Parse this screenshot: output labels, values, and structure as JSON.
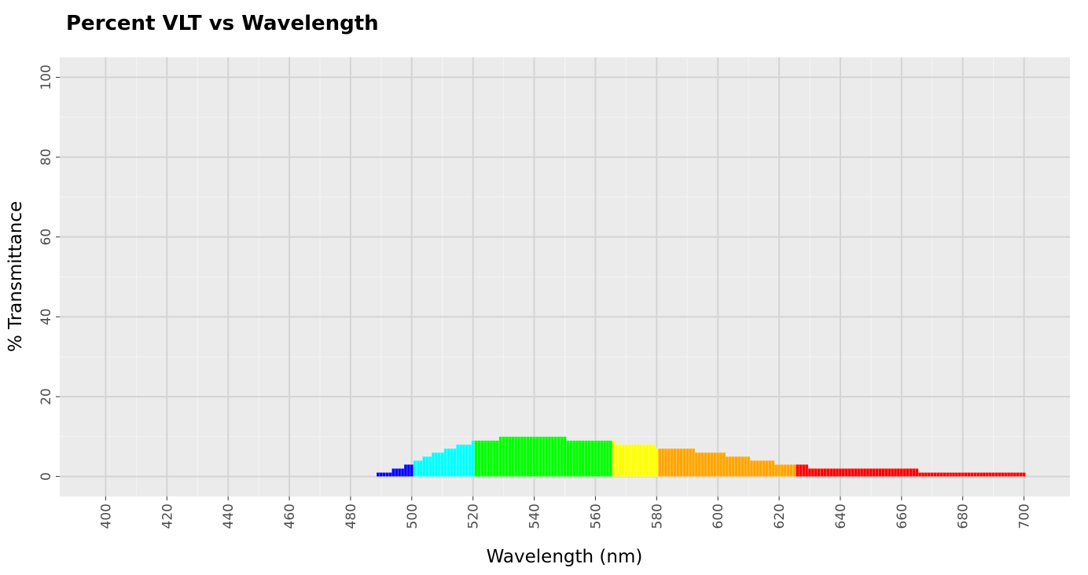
{
  "chart_data": {
    "type": "bar",
    "title": "Percent VLT vs Wavelength",
    "xlabel": "Wavelength (nm)",
    "ylabel": "% Transmittance",
    "xlim": [
      385,
      715
    ],
    "ylim": [
      -5,
      105
    ],
    "x_ticks": [
      400,
      420,
      440,
      460,
      480,
      500,
      520,
      540,
      560,
      580,
      600,
      620,
      640,
      660,
      680,
      700
    ],
    "y_ticks": [
      0,
      20,
      40,
      60,
      80,
      100
    ],
    "grid": true,
    "bar_width_nm": 1,
    "colors": {
      "blue": "#0000FF",
      "cyan": "#00FFFF",
      "green": "#00FF00",
      "yellow": "#FFFF00",
      "orange": "#FFA500",
      "red": "#FF0000"
    },
    "segments": [
      {
        "from": 489,
        "to": 493,
        "value": 1,
        "color": "blue"
      },
      {
        "from": 494,
        "to": 497,
        "value": 2,
        "color": "blue"
      },
      {
        "from": 498,
        "to": 500,
        "value": 3,
        "color": "blue"
      },
      {
        "from": 501,
        "to": 503,
        "value": 4,
        "color": "cyan"
      },
      {
        "from": 504,
        "to": 506,
        "value": 5,
        "color": "cyan"
      },
      {
        "from": 507,
        "to": 510,
        "value": 6,
        "color": "cyan"
      },
      {
        "from": 511,
        "to": 514,
        "value": 7,
        "color": "cyan"
      },
      {
        "from": 515,
        "to": 519,
        "value": 8,
        "color": "cyan"
      },
      {
        "from": 520,
        "to": 520,
        "value": 9,
        "color": "cyan"
      },
      {
        "from": 521,
        "to": 528,
        "value": 9,
        "color": "green"
      },
      {
        "from": 529,
        "to": 550,
        "value": 10,
        "color": "green"
      },
      {
        "from": 551,
        "to": 565,
        "value": 9,
        "color": "green"
      },
      {
        "from": 566,
        "to": 566,
        "value": 9,
        "color": "yellow"
      },
      {
        "from": 567,
        "to": 579,
        "value": 8,
        "color": "yellow"
      },
      {
        "from": 580,
        "to": 580,
        "value": 7,
        "color": "yellow"
      },
      {
        "from": 581,
        "to": 592,
        "value": 7,
        "color": "orange"
      },
      {
        "from": 593,
        "to": 602,
        "value": 6,
        "color": "orange"
      },
      {
        "from": 603,
        "to": 610,
        "value": 5,
        "color": "orange"
      },
      {
        "from": 611,
        "to": 618,
        "value": 4,
        "color": "orange"
      },
      {
        "from": 619,
        "to": 625,
        "value": 3,
        "color": "orange"
      },
      {
        "from": 626,
        "to": 629,
        "value": 3,
        "color": "red"
      },
      {
        "from": 630,
        "to": 665,
        "value": 2,
        "color": "red"
      },
      {
        "from": 666,
        "to": 700,
        "value": 1,
        "color": "red"
      }
    ]
  }
}
